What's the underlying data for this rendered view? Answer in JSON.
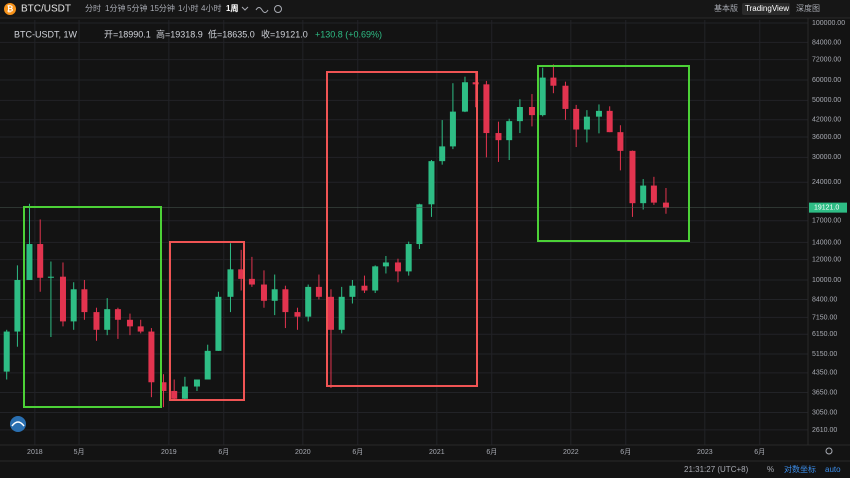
{
  "toolbar": {
    "symbol": "BTC/USDT",
    "intervals": [
      "分时",
      "1分钟",
      "5分钟",
      "15分钟",
      "1小时",
      "4小时",
      "1周"
    ],
    "views": [
      "基本版",
      "TradingView",
      "深度图"
    ]
  },
  "legend": {
    "symbol": "BTC-USDT, 1W",
    "open": "开=18990.1",
    "high": "高=19318.9",
    "low": "低=18635.0",
    "close": "收=19121.0",
    "change": "+130.8 (+0.69%)"
  },
  "status": {
    "time": "21:31:27 (UTC+8)",
    "percent": "%",
    "log": "对数坐标",
    "auto": "auto"
  },
  "chart_data": {
    "type": "candlestick",
    "log_scale": true,
    "grid": true,
    "up_color": "#2ebd85",
    "down_color": "#e2344f",
    "x": [
      2017.79,
      2017.87,
      2017.96,
      2018.04,
      2018.12,
      2018.21,
      2018.29,
      2018.37,
      2018.46,
      2018.54,
      2018.62,
      2018.71,
      2018.79,
      2018.87,
      2018.96,
      2019.04,
      2019.12,
      2019.21,
      2019.29,
      2019.37,
      2019.46,
      2019.54,
      2019.62,
      2019.71,
      2019.79,
      2019.87,
      2019.96,
      2020.04,
      2020.12,
      2020.21,
      2020.29,
      2020.37,
      2020.46,
      2020.54,
      2020.62,
      2020.71,
      2020.79,
      2020.87,
      2020.96,
      2021.04,
      2021.12,
      2021.21,
      2021.29,
      2021.37,
      2021.46,
      2021.54,
      2021.62,
      2021.71,
      2021.79,
      2021.87,
      2021.96,
      2022.04,
      2022.12,
      2022.21,
      2022.29,
      2022.37,
      2022.46,
      2022.54,
      2022.62,
      2022.71
    ],
    "ohlc": [
      [
        4400,
        6400,
        4100,
        6300
      ],
      [
        6300,
        11400,
        5500,
        10000
      ],
      [
        10000,
        19800,
        10000,
        13800
      ],
      [
        13800,
        17200,
        9000,
        10200
      ],
      [
        10200,
        11800,
        6000,
        10300
      ],
      [
        10300,
        11700,
        6600,
        6900
      ],
      [
        6900,
        9800,
        6400,
        9200
      ],
      [
        9200,
        10000,
        7000,
        7500
      ],
      [
        7500,
        7800,
        5800,
        6400
      ],
      [
        6400,
        8500,
        6100,
        7700
      ],
      [
        7700,
        7800,
        5900,
        7000
      ],
      [
        7000,
        7400,
        6100,
        6600
      ],
      [
        6600,
        7000,
        6200,
        6300
      ],
      [
        6300,
        6500,
        3500,
        4000
      ],
      [
        4000,
        4300,
        3200,
        3700
      ],
      [
        3700,
        4100,
        3400,
        3450
      ],
      [
        3450,
        4200,
        3400,
        3850
      ],
      [
        3850,
        4100,
        3700,
        4100
      ],
      [
        4100,
        5600,
        4100,
        5300
      ],
      [
        5300,
        9000,
        5300,
        8600
      ],
      [
        8600,
        13900,
        7500,
        11000
      ],
      [
        11000,
        13100,
        9100,
        10100
      ],
      [
        10100,
        12300,
        9400,
        9600
      ],
      [
        9600,
        10900,
        7800,
        8300
      ],
      [
        8300,
        10500,
        7300,
        9200
      ],
      [
        9200,
        9500,
        6500,
        7500
      ],
      [
        7500,
        7800,
        6400,
        7200
      ],
      [
        7200,
        9600,
        6900,
        9400
      ],
      [
        9400,
        10500,
        8400,
        8600
      ],
      [
        8600,
        9200,
        3800,
        6400
      ],
      [
        6400,
        9400,
        6200,
        8600
      ],
      [
        8600,
        10000,
        8100,
        9500
      ],
      [
        9500,
        10400,
        8900,
        9100
      ],
      [
        9100,
        11400,
        8900,
        11300
      ],
      [
        11300,
        12400,
        10600,
        11700
      ],
      [
        11700,
        12100,
        9800,
        10800
      ],
      [
        10800,
        14100,
        10400,
        13800
      ],
      [
        13800,
        19800,
        13200,
        19700
      ],
      [
        19700,
        29300,
        17600,
        29000
      ],
      [
        29000,
        41900,
        28100,
        33100
      ],
      [
        33100,
        58300,
        32300,
        45200
      ],
      [
        45200,
        61800,
        45000,
        58800
      ],
      [
        58800,
        64800,
        47000,
        57700
      ],
      [
        57700,
        59500,
        30000,
        37300
      ],
      [
        37300,
        41300,
        28800,
        35000
      ],
      [
        35000,
        42400,
        29300,
        41500
      ],
      [
        41500,
        50500,
        37300,
        47100
      ],
      [
        47100,
        52900,
        39600,
        43800
      ],
      [
        43800,
        67000,
        43300,
        61300
      ],
      [
        61300,
        69000,
        53300,
        57000
      ],
      [
        57000,
        59100,
        42000,
        46300
      ],
      [
        46300,
        48000,
        32900,
        38500
      ],
      [
        38500,
        45800,
        34300,
        43200
      ],
      [
        43200,
        48200,
        37200,
        45500
      ],
      [
        45500,
        47400,
        37600,
        37600
      ],
      [
        37600,
        40000,
        26700,
        31800
      ],
      [
        31800,
        31900,
        17600,
        19900
      ],
      [
        19900,
        24700,
        18800,
        23300
      ],
      [
        23300,
        25200,
        19600,
        20000
      ],
      [
        20000,
        22800,
        18100,
        19121
      ]
    ],
    "price_label": "19121.0",
    "xlim": [
      2017.74,
      2023.77
    ],
    "xticks": [
      2018,
      {
        "value": 2018.33,
        "label": "5月"
      },
      2019,
      {
        "value": 2019.41,
        "label": "6月"
      },
      2020,
      {
        "value": 2020.41,
        "label": "6月"
      },
      2021,
      {
        "value": 2021.41,
        "label": "6月"
      },
      2022,
      {
        "value": 2022.41,
        "label": "6月"
      },
      2023,
      {
        "value": 2023.41,
        "label": "6月"
      }
    ],
    "ylim": [
      2280,
      102700
    ],
    "yticks": [
      {
        "value": 100000,
        "label": "100000.00"
      },
      {
        "value": 84000,
        "label": "84000.00"
      },
      {
        "value": 72000,
        "label": "72000.00"
      },
      {
        "value": 60000,
        "label": "60000.00"
      },
      {
        "value": 50000,
        "label": "50000.00"
      },
      {
        "value": 42000,
        "label": "42000.00"
      },
      {
        "value": 36000,
        "label": "36000.00"
      },
      {
        "value": 30000,
        "label": "30000.00"
      },
      {
        "value": 24000,
        "label": "24000.00"
      },
      {
        "value": 17000,
        "label": "17000.00"
      },
      {
        "value": 14000,
        "label": "14000.00"
      },
      {
        "value": 12000,
        "label": "12000.00"
      },
      {
        "value": 10000,
        "label": "10000.00"
      },
      {
        "value": 8400,
        "label": "8400.00"
      },
      {
        "value": 7150,
        "label": "7150.00"
      },
      {
        "value": 6150,
        "label": "6150.00"
      },
      {
        "value": 5150,
        "label": "5150.00"
      },
      {
        "value": 4350,
        "label": "4350.00"
      },
      {
        "value": 3650,
        "label": "3650.00"
      },
      {
        "value": 3050,
        "label": "3050.00"
      },
      {
        "value": 2610,
        "label": "2610.00"
      }
    ]
  }
}
